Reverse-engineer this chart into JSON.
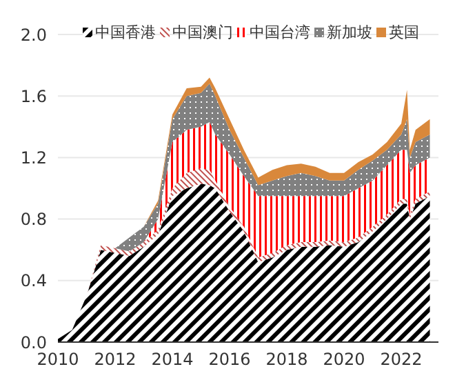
{
  "chart_data": {
    "type": "area",
    "stacked": true,
    "x": [
      2010,
      2010.5,
      2011,
      2011.5,
      2012,
      2012.5,
      2013,
      2013.5,
      2014,
      2014.5,
      2015,
      2015.3,
      2015.5,
      2016,
      2016.5,
      2017,
      2017.5,
      2018,
      2018.5,
      2019,
      2019.5,
      2020,
      2020.5,
      2021,
      2021.5,
      2022,
      2022.2,
      2022.3,
      2022.5,
      2023
    ],
    "series": [
      {
        "name": "中国香港",
        "color": "#000000",
        "values": [
          0.02,
          0.08,
          0.3,
          0.6,
          0.58,
          0.56,
          0.62,
          0.7,
          0.95,
          1.0,
          1.03,
          1.02,
          1.0,
          0.85,
          0.72,
          0.52,
          0.55,
          0.6,
          0.62,
          0.62,
          0.63,
          0.62,
          0.65,
          0.72,
          0.8,
          0.9,
          0.9,
          0.8,
          0.9,
          0.95
        ]
      },
      {
        "name": "中国澳门",
        "color": "#c0504d",
        "values": [
          0,
          0,
          0,
          0.03,
          0.03,
          0.03,
          0.03,
          0.03,
          0.05,
          0.1,
          0.1,
          0.1,
          0.05,
          0.03,
          0.03,
          0.03,
          0.03,
          0.03,
          0.03,
          0.03,
          0.03,
          0.03,
          0.03,
          0.03,
          0.03,
          0.03,
          0.03,
          0.03,
          0.03,
          0.03
        ]
      },
      {
        "name": "中国台湾",
        "color": "#ff0000",
        "values": [
          0,
          0,
          0,
          0,
          0,
          0,
          0,
          0.07,
          0.3,
          0.28,
          0.27,
          0.31,
          0.3,
          0.34,
          0.33,
          0.4,
          0.37,
          0.32,
          0.3,
          0.3,
          0.29,
          0.3,
          0.32,
          0.3,
          0.32,
          0.32,
          0.32,
          0.27,
          0.22,
          0.22
        ]
      },
      {
        "name": "新加坡",
        "color": "#808080",
        "values": [
          0,
          0,
          0,
          0,
          0,
          0.09,
          0.1,
          0.1,
          0.15,
          0.22,
          0.22,
          0.25,
          0.25,
          0.16,
          0.12,
          0.07,
          0.1,
          0.13,
          0.15,
          0.13,
          0.1,
          0.1,
          0.12,
          0.13,
          0.1,
          0.1,
          0.2,
          0.1,
          0.15,
          0.15
        ]
      },
      {
        "name": "英国",
        "color": "#d9883b",
        "values": [
          0,
          0,
          0,
          0,
          0,
          0,
          0,
          0.02,
          0.03,
          0.05,
          0.04,
          0.04,
          0.05,
          0.07,
          0.05,
          0.05,
          0.07,
          0.07,
          0.06,
          0.06,
          0.05,
          0.05,
          0.05,
          0.04,
          0.05,
          0.07,
          0.19,
          0.05,
          0.08,
          0.1
        ]
      }
    ],
    "xlim": [
      2010,
      2023.3
    ],
    "xticks": [
      2010,
      2012,
      2014,
      2016,
      2018,
      2020,
      2022
    ],
    "ylim": [
      0,
      2
    ],
    "yticks": [
      {
        "value": 0,
        "label": "0.0"
      },
      0.4,
      0.8,
      1.2,
      1.6,
      {
        "value": 2,
        "label": "2.0"
      }
    ],
    "grid": "y",
    "legend": "top"
  }
}
